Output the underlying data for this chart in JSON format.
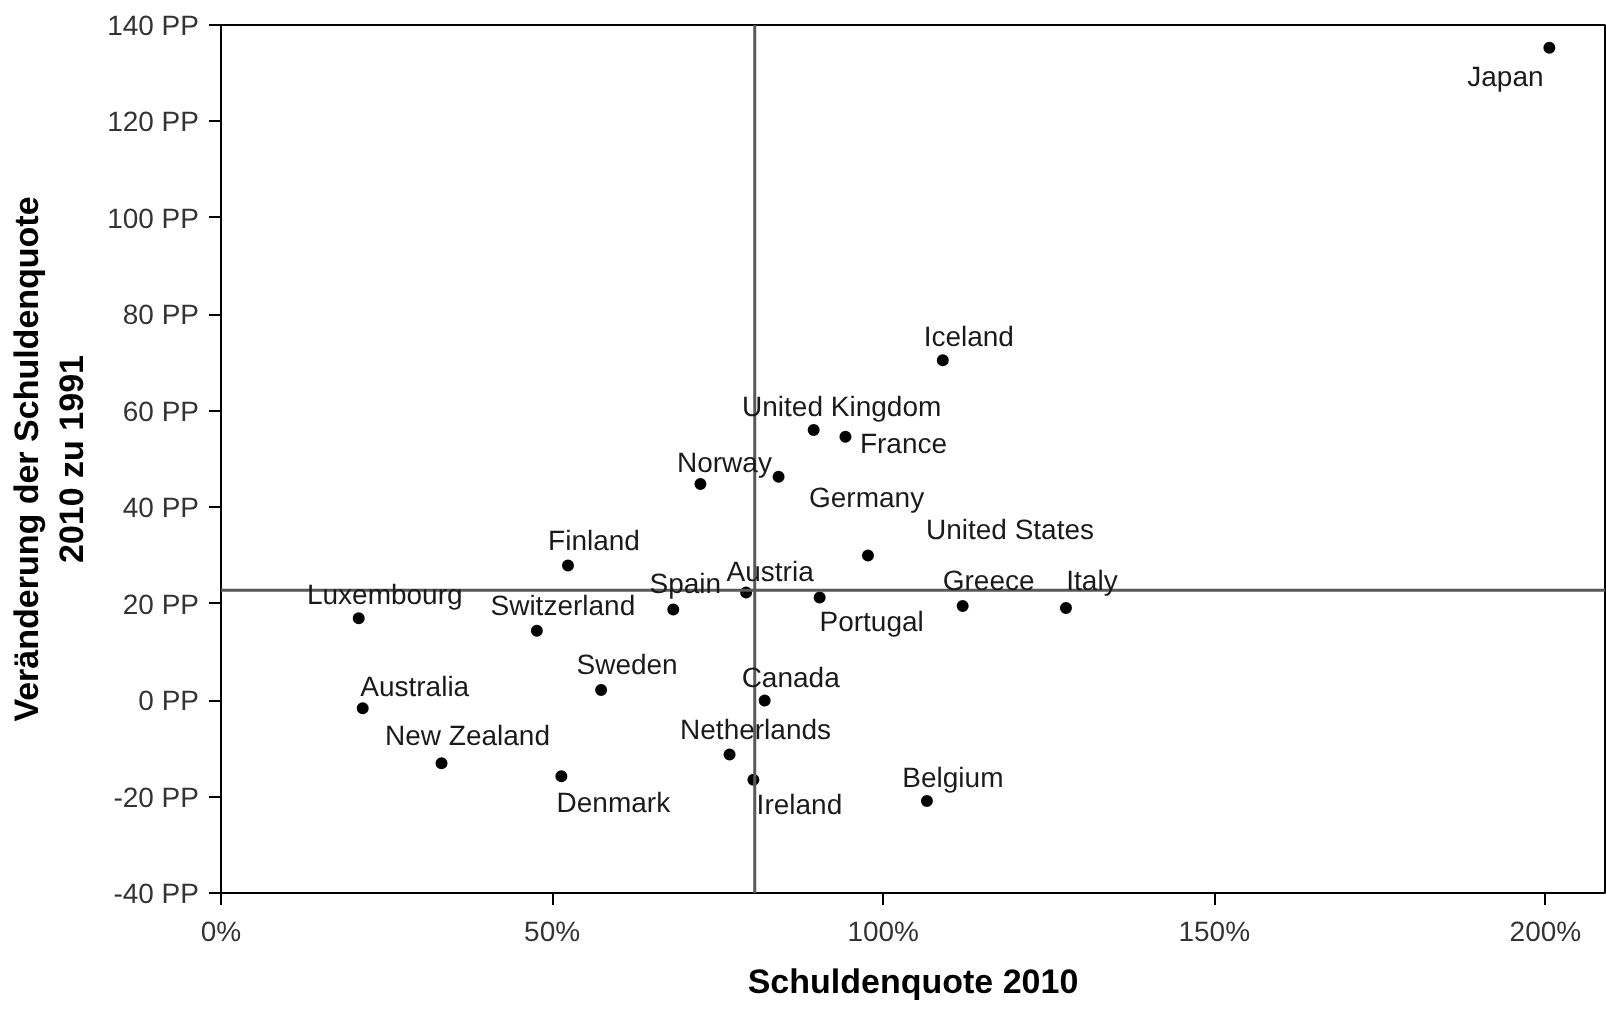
{
  "chart_data": {
    "type": "scatter",
    "xlabel": "Schuldenquote 2010",
    "ylabel": "Veränderung der Schuldenquote\n2010 zu 1991",
    "xlim": [
      0,
      209
    ],
    "ylim": [
      -40,
      140
    ],
    "xticks": [
      {
        "value": 0,
        "label": "0%"
      },
      {
        "value": 50,
        "label": "50%"
      },
      {
        "value": 100,
        "label": "100%"
      },
      {
        "value": 150,
        "label": "150%"
      },
      {
        "value": 200,
        "label": "200%"
      }
    ],
    "yticks": [
      {
        "value": -40,
        "label": "-40 PP"
      },
      {
        "value": -20,
        "label": "-20 PP"
      },
      {
        "value": 0,
        "label": "0 PP"
      },
      {
        "value": 20,
        "label": "20 PP"
      },
      {
        "value": 40,
        "label": "40 PP"
      },
      {
        "value": 60,
        "label": "60 PP"
      },
      {
        "value": 80,
        "label": "80 PP"
      },
      {
        "value": 100,
        "label": "100 PP"
      },
      {
        "value": 120,
        "label": "120 PP"
      },
      {
        "value": 140,
        "label": "140 PP"
      }
    ],
    "grid": false,
    "marker": "circle",
    "ref_lines": [
      {
        "axis": "x",
        "value": 80.6,
        "color": "#595959"
      },
      {
        "axis": "y",
        "value": 22.8,
        "color": "#595959"
      }
    ],
    "series": [
      {
        "name": "Japan",
        "color": "#000000",
        "x": [
          200.6
        ],
        "values": [
          135.3
        ]
      },
      {
        "name": "Iceland",
        "color": "#000000",
        "x": [
          109.0
        ],
        "values": [
          70.5
        ]
      },
      {
        "name": "United Kingdom",
        "color": "#000000",
        "x": [
          89.5
        ],
        "values": [
          56.0
        ]
      },
      {
        "name": "France",
        "color": "#000000",
        "x": [
          94.3
        ],
        "values": [
          54.6
        ]
      },
      {
        "name": "Norway",
        "color": "#000000",
        "x": [
          72.4
        ],
        "values": [
          44.8
        ]
      },
      {
        "name": "Germany",
        "color": "#000000",
        "x": [
          84.2
        ],
        "values": [
          46.3
        ]
      },
      {
        "name": "United States",
        "color": "#000000",
        "x": [
          97.7
        ],
        "values": [
          30.0
        ]
      },
      {
        "name": "Finland",
        "color": "#000000",
        "x": [
          52.4
        ],
        "values": [
          27.9
        ]
      },
      {
        "name": "Spain",
        "color": "#000000",
        "x": [
          68.3
        ],
        "values": [
          18.8
        ]
      },
      {
        "name": "Austria",
        "color": "#000000",
        "x": [
          79.3
        ],
        "values": [
          22.3
        ]
      },
      {
        "name": "Luxembourg",
        "color": "#000000",
        "x": [
          20.8
        ],
        "values": [
          17.0
        ]
      },
      {
        "name": "Switzerland",
        "color": "#000000",
        "x": [
          47.7
        ],
        "values": [
          14.4
        ]
      },
      {
        "name": "Portugal",
        "color": "#000000",
        "x": [
          90.4
        ],
        "values": [
          21.3
        ]
      },
      {
        "name": "Greece",
        "color": "#000000",
        "x": [
          112.0
        ],
        "values": [
          19.5
        ]
      },
      {
        "name": "Italy",
        "color": "#000000",
        "x": [
          127.6
        ],
        "values": [
          19.1
        ]
      },
      {
        "name": "Sweden",
        "color": "#000000",
        "x": [
          57.4
        ],
        "values": [
          2.1
        ]
      },
      {
        "name": "Australia",
        "color": "#000000",
        "x": [
          21.4
        ],
        "values": [
          -1.7
        ]
      },
      {
        "name": "Canada",
        "color": "#000000",
        "x": [
          82.1
        ],
        "values": [
          -0.1
        ]
      },
      {
        "name": "Netherlands",
        "color": "#000000",
        "x": [
          76.8
        ],
        "values": [
          -11.3
        ]
      },
      {
        "name": "New Zealand",
        "color": "#000000",
        "x": [
          33.3
        ],
        "values": [
          -13.1
        ]
      },
      {
        "name": "Denmark",
        "color": "#000000",
        "x": [
          51.4
        ],
        "values": [
          -15.8
        ]
      },
      {
        "name": "Ireland",
        "color": "#000000",
        "x": [
          80.4
        ],
        "values": [
          -16.5
        ]
      },
      {
        "name": "Belgium",
        "color": "#000000",
        "x": [
          106.6
        ],
        "values": [
          -20.9
        ]
      }
    ]
  }
}
